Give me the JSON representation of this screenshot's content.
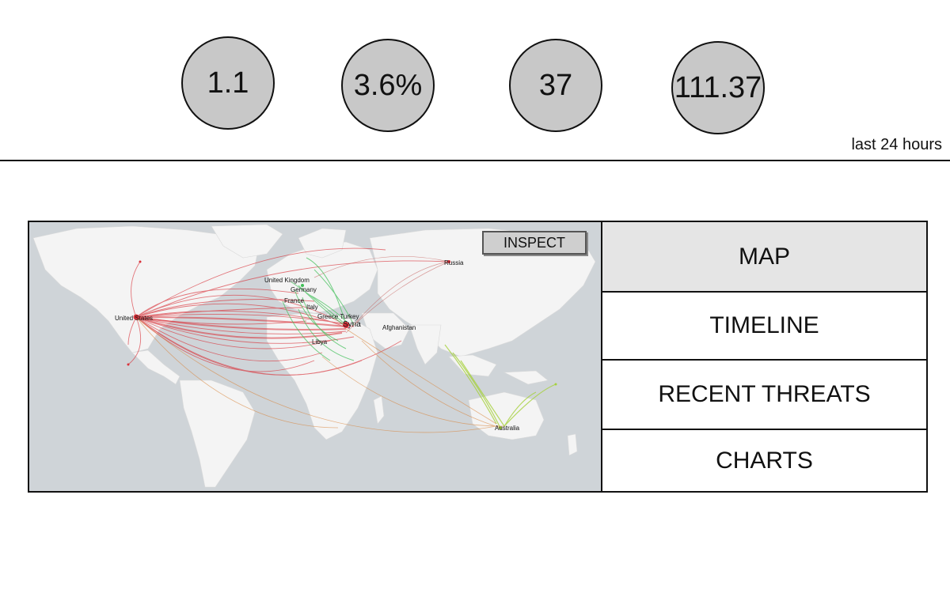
{
  "stats": [
    {
      "value": "1.1"
    },
    {
      "value": "3.6%"
    },
    {
      "value": "37"
    },
    {
      "value": "111.37"
    }
  ],
  "time_range": "last 24 hours",
  "map": {
    "inspect_label": "INSPECT",
    "labels": {
      "united_states": "United States",
      "united_kingdom": "United Kingdom",
      "germany": "Germany",
      "france": "France",
      "italy": "Italy",
      "greece_turkey": "Greece Turkey",
      "syria": "Syria",
      "afghanistan": "Afghanistan",
      "libya": "Libya",
      "russia": "Russia",
      "australia": "Australia"
    },
    "colors": {
      "ocean": "#cfd4d8",
      "land": "#f4f4f4",
      "us_arcs": "#d9323a",
      "europe_arcs": "#3fbf57",
      "asia_arcs": "#a6d13c",
      "africa_arcs": "#d8843a"
    }
  },
  "nav": [
    {
      "label": "MAP",
      "active": true
    },
    {
      "label": "TIMELINE",
      "active": false
    },
    {
      "label": "RECENT THREATS",
      "active": false
    },
    {
      "label": "CHARTS",
      "active": false
    }
  ]
}
